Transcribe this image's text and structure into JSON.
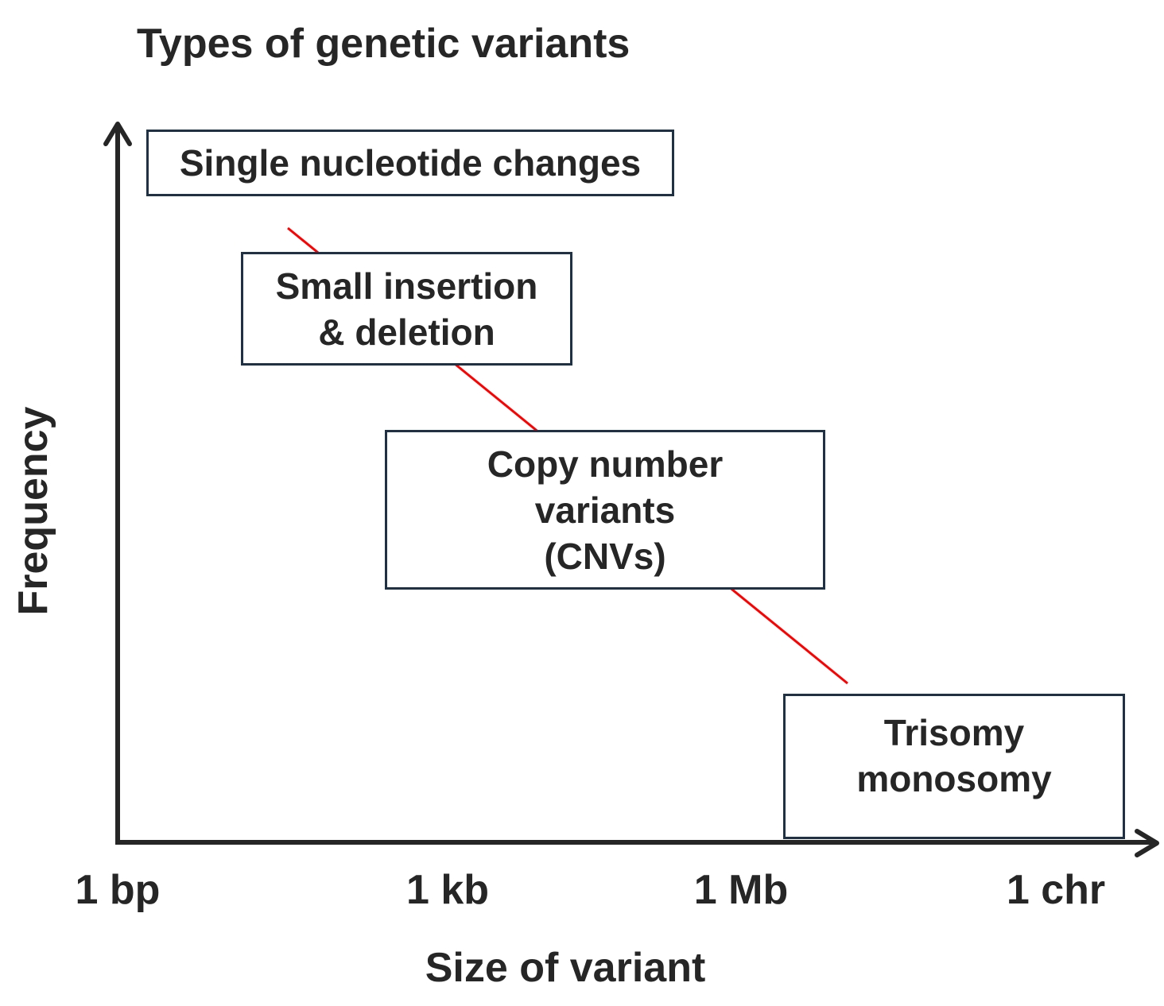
{
  "title": "Types of genetic variants",
  "axes": {
    "x_label": "Size of variant",
    "y_label": "Frequency",
    "x_ticks": [
      "1 bp",
      "1 kb",
      "1 Mb",
      "1 chr"
    ]
  },
  "categories": [
    {
      "label": "Single nucleotide changes"
    },
    {
      "label": "Small insertion\n& deletion"
    },
    {
      "label": "Copy number\nvariants\n(CNVs)"
    },
    {
      "label": "Trisomy\nmonosomy"
    }
  ],
  "colors": {
    "axis": "#262626",
    "trend_line": "#ff0000",
    "box_border": "#1f3144",
    "text": "#262626"
  }
}
